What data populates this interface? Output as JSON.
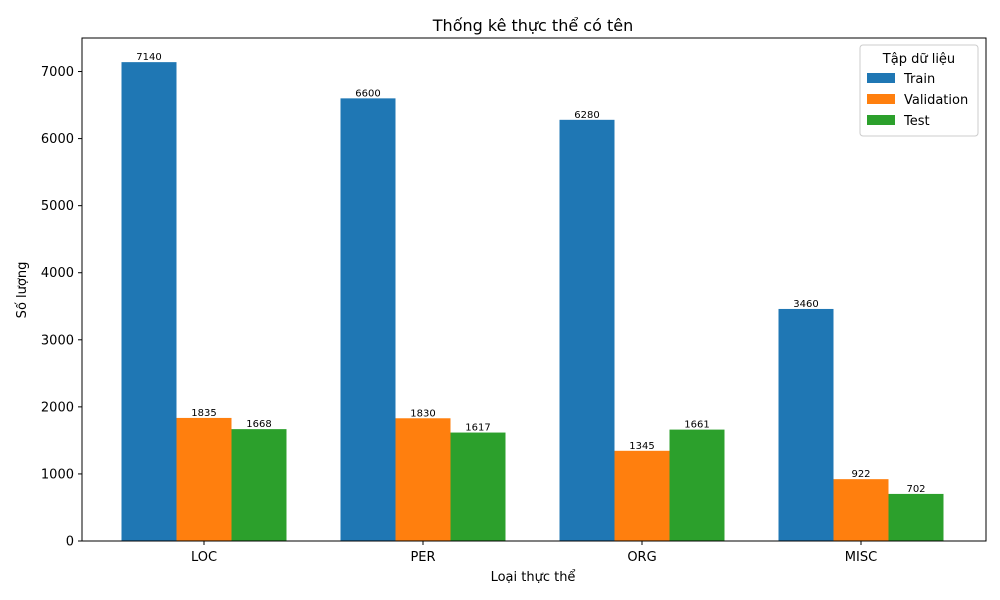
{
  "chart_data": {
    "type": "bar",
    "title": "Thống kê thực thể có tên",
    "xlabel": "Loại thực thể",
    "ylabel": "Số lượng",
    "categories": [
      "LOC",
      "PER",
      "ORG",
      "MISC"
    ],
    "series": [
      {
        "name": "Train",
        "values": [
          7140,
          6600,
          6280,
          3460
        ],
        "color": "#1f77b4"
      },
      {
        "name": "Validation",
        "values": [
          1835,
          1830,
          1345,
          922
        ],
        "color": "#ff7f0e"
      },
      {
        "name": "Test",
        "values": [
          1668,
          1617,
          1661,
          702
        ],
        "color": "#2ca02c"
      }
    ],
    "ylim": [
      0,
      7500
    ],
    "yticks": [
      0,
      1000,
      2000,
      3000,
      4000,
      5000,
      6000,
      7000
    ],
    "legend": {
      "title": "Tập dữ liệu",
      "position": "top-right"
    },
    "grid": false,
    "data_labels": true
  }
}
